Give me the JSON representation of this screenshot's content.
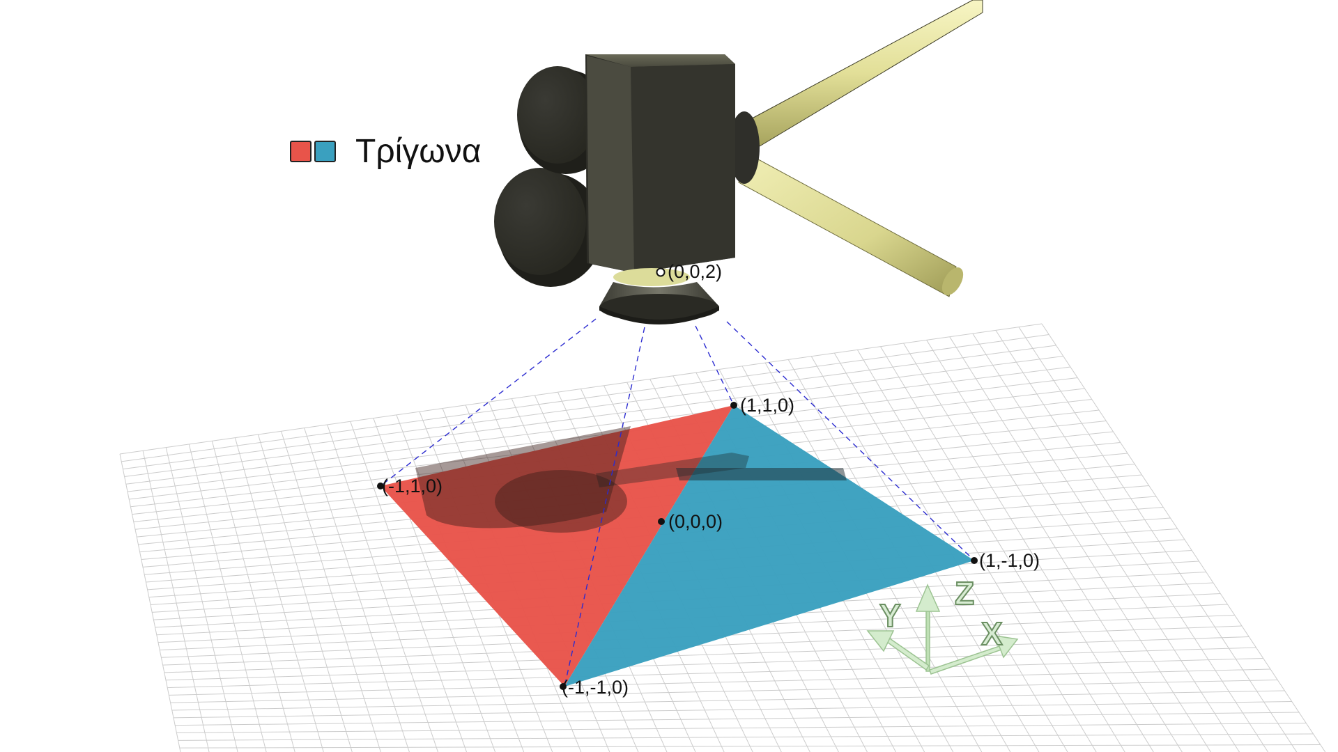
{
  "legend": {
    "label": "Τρίγωνα",
    "swatches": [
      {
        "name": "red-triangle",
        "color": "#e8544a"
      },
      {
        "name": "blue-triangle",
        "color": "#3aa0bf"
      }
    ]
  },
  "points": {
    "camera": "(0,0,2)",
    "p11": "(1,1,0)",
    "pm11": "(-1,1,0)",
    "p00": "(0,0,0)",
    "p1m1": "(1,-1,0)",
    "pm1m1": "(-1,-1,0)"
  },
  "axes": {
    "x": "X",
    "y": "Y",
    "z": "Z"
  },
  "colors": {
    "red_triangle": "#e8544a",
    "blue_triangle": "#3aa0bf",
    "grid": "#c9c9c9",
    "projection_lines": "#2b2bd0",
    "camera_body": "#3a3a32",
    "camera_arm": "#e2e0a0",
    "axis_gizmo": "#cfe8c8"
  }
}
